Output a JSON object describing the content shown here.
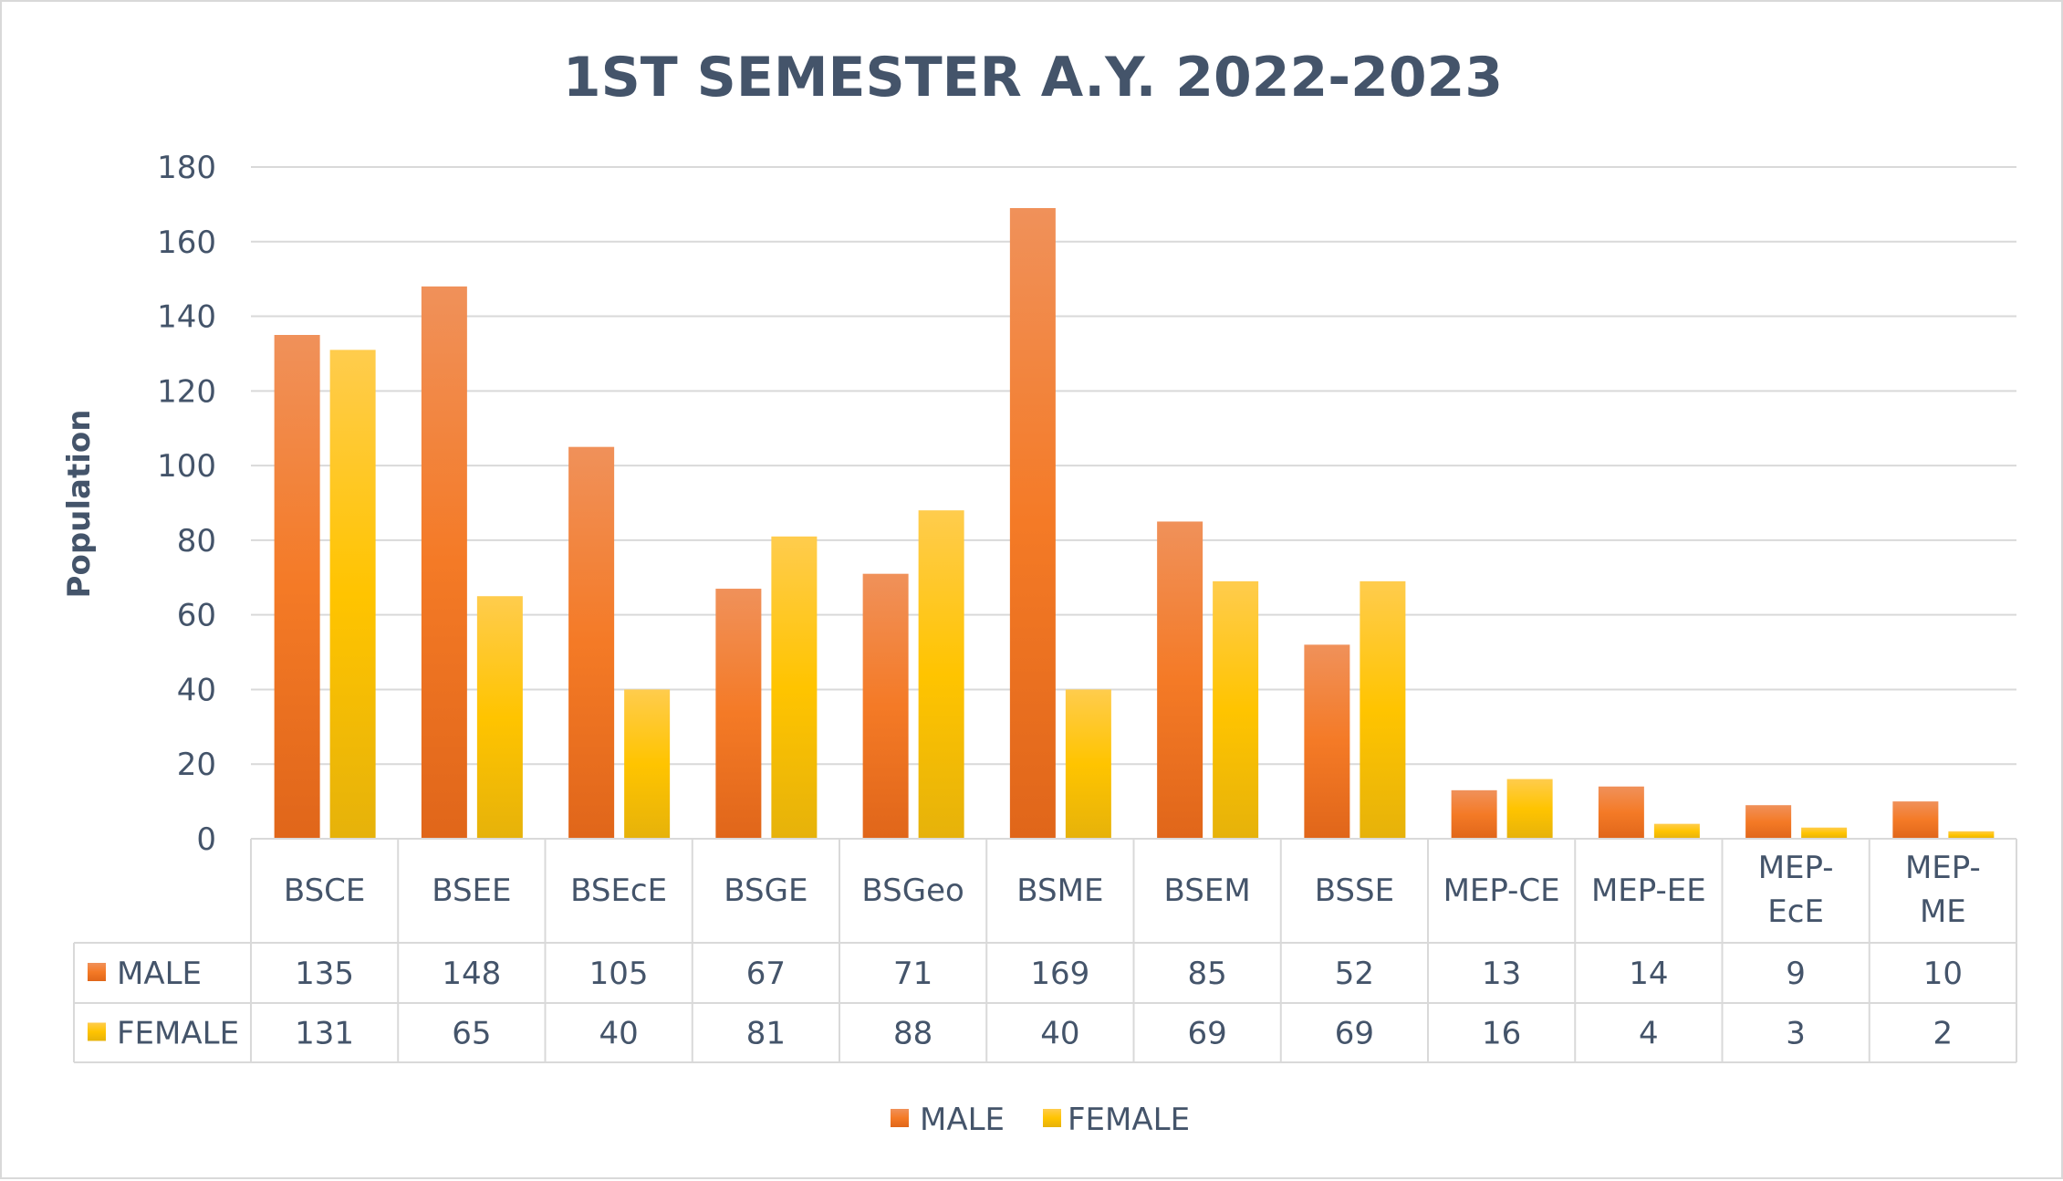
{
  "chart_data": {
    "type": "bar",
    "title": "1ST SEMESTER A.Y. 2022-2023",
    "ylabel": "Population",
    "xlabel": "",
    "ylim": [
      0,
      180
    ],
    "yticks": [
      "0",
      "20",
      "40",
      "60",
      "80",
      "100",
      "120",
      "140",
      "160",
      "180"
    ],
    "grid": true,
    "legend_position": "bottom",
    "categories": [
      [
        "BSCE"
      ],
      [
        "BSEE"
      ],
      [
        "BSEcE"
      ],
      [
        "BSGE"
      ],
      [
        "BSGeo"
      ],
      [
        "BSME"
      ],
      [
        "BSEM"
      ],
      [
        "BSSE"
      ],
      [
        "MEP-CE"
      ],
      [
        "MEP-EE"
      ],
      [
        "MEP-",
        "EcE"
      ],
      [
        "MEP-",
        "ME"
      ]
    ],
    "series": [
      {
        "name": "MALE",
        "color": "#f07f2a",
        "values": [
          135,
          148,
          105,
          67,
          71,
          169,
          85,
          52,
          13,
          14,
          9,
          10
        ],
        "labels": [
          "135",
          "148",
          "105",
          "67",
          "71",
          "169",
          "85",
          "52",
          "13",
          "14",
          "9",
          "10"
        ]
      },
      {
        "name": "FEMALE",
        "color": "#ffc000",
        "values": [
          131,
          65,
          40,
          81,
          88,
          40,
          69,
          69,
          16,
          4,
          3,
          2
        ],
        "labels": [
          "131",
          "65",
          "40",
          "81",
          "88",
          "40",
          "69",
          "69",
          "16",
          "4",
          "3",
          "2"
        ]
      }
    ]
  }
}
